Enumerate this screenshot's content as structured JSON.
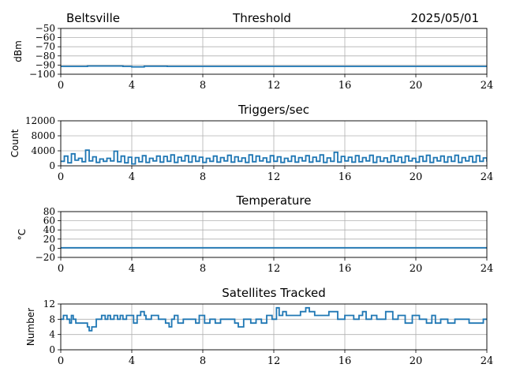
{
  "header": {
    "station": "Beltsville",
    "date": "2025/05/01"
  },
  "chart_data": [
    {
      "type": "line",
      "title": "Threshold",
      "ylabel": "dBm",
      "xlabel": "",
      "xlim": [
        0,
        24
      ],
      "ylim": [
        -100,
        -50
      ],
      "xticks": [
        0,
        4,
        8,
        12,
        16,
        20,
        24
      ],
      "yticks": [
        -100,
        -90,
        -80,
        -70,
        -60,
        -50
      ],
      "grid": true,
      "color": "#1f77b4",
      "series": [
        {
          "x": [
            0,
            1.5,
            3.5,
            4.0,
            4.7,
            6,
            8,
            10,
            12,
            14,
            16,
            18,
            20,
            22,
            24
          ],
          "y": [
            -91.5,
            -91,
            -91.5,
            -92,
            -91.3,
            -91.5,
            -91.5,
            -91.5,
            -91.5,
            -91.5,
            -91.5,
            -91.5,
            -91.5,
            -91.5,
            -91.5
          ]
        }
      ]
    },
    {
      "type": "line",
      "title": "Triggers/sec",
      "ylabel": "Count",
      "xlabel": "",
      "xlim": [
        0,
        24
      ],
      "ylim": [
        0,
        12000
      ],
      "xticks": [
        0,
        4,
        8,
        12,
        16,
        20,
        24
      ],
      "yticks": [
        0,
        4000,
        8000,
        12000
      ],
      "grid": true,
      "color": "#1f77b4",
      "series": [
        {
          "x": [
            0,
            0.2,
            0.4,
            0.6,
            0.8,
            1.0,
            1.2,
            1.4,
            1.6,
            1.8,
            2.0,
            2.2,
            2.4,
            2.6,
            2.8,
            3.0,
            3.2,
            3.4,
            3.6,
            3.8,
            4.0,
            4.2,
            4.4,
            4.6,
            4.8,
            5.0,
            5.2,
            5.4,
            5.6,
            5.8,
            6.0,
            6.2,
            6.4,
            6.6,
            6.8,
            7.0,
            7.2,
            7.4,
            7.6,
            7.8,
            8.0,
            8.2,
            8.4,
            8.6,
            8.8,
            9.0,
            9.2,
            9.4,
            9.6,
            9.8,
            10.0,
            10.2,
            10.4,
            10.6,
            10.8,
            11.0,
            11.2,
            11.4,
            11.6,
            11.8,
            12.0,
            12.2,
            12.4,
            12.6,
            12.8,
            13.0,
            13.2,
            13.4,
            13.6,
            13.8,
            14.0,
            14.2,
            14.4,
            14.6,
            14.8,
            15.0,
            15.2,
            15.4,
            15.6,
            15.8,
            16.0,
            16.2,
            16.4,
            16.6,
            16.8,
            17.0,
            17.2,
            17.4,
            17.6,
            17.8,
            18.0,
            18.2,
            18.4,
            18.6,
            18.8,
            19.0,
            19.2,
            19.4,
            19.6,
            19.8,
            20.0,
            20.2,
            20.4,
            20.6,
            20.8,
            21.0,
            21.2,
            21.4,
            21.6,
            21.8,
            22.0,
            22.2,
            22.4,
            22.6,
            22.8,
            23.0,
            23.2,
            23.4,
            23.6,
            23.8,
            24.0
          ],
          "y": [
            1200,
            2600,
            800,
            3200,
            1500,
            2000,
            1100,
            4200,
            1300,
            2400,
            900,
            1800,
            1200,
            2000,
            1300,
            3900,
            1100,
            2600,
            800,
            2300,
            500,
            2200,
            1100,
            2700,
            900,
            2000,
            1300,
            2600,
            1000,
            2500,
            1200,
            2900,
            900,
            2300,
            1300,
            2700,
            1000,
            2600,
            1200,
            2300,
            900,
            2000,
            1200,
            2600,
            1000,
            2200,
            1300,
            2800,
            1000,
            2400,
            1200,
            2100,
            900,
            2900,
            1100,
            2600,
            1300,
            2100,
            1000,
            2700,
            1200,
            2400,
            900,
            2000,
            1200,
            2600,
            1000,
            2200,
            1300,
            2700,
            1000,
            2300,
            1200,
            2900,
            900,
            2100,
            1200,
            3600,
            1000,
            2500,
            1300,
            2300,
            1000,
            2700,
            1100,
            2200,
            1300,
            2800,
            900,
            2400,
            1200,
            2100,
            1000,
            2700,
            1200,
            2300,
            900,
            2600,
            1300,
            2000,
            1000,
            2500,
            1200,
            2800,
            900,
            2200,
            1300,
            2600,
            1000,
            2400,
            1200,
            2800,
            900,
            2200,
            1300,
            2500,
            1000,
            2700,
            1200,
            2100,
            1100
          ]
        }
      ]
    },
    {
      "type": "line",
      "title": "Temperature",
      "ylabel": "°C",
      "xlabel": "",
      "xlim": [
        0,
        24
      ],
      "ylim": [
        -20,
        80
      ],
      "xticks": [
        0,
        4,
        8,
        12,
        16,
        20,
        24
      ],
      "yticks": [
        -20,
        0,
        20,
        40,
        60,
        80
      ],
      "grid": true,
      "color": "#1f77b4",
      "series": [
        {
          "x": [
            0,
            24
          ],
          "y": [
            1,
            1
          ]
        }
      ]
    },
    {
      "type": "line",
      "title": "Satellites Tracked",
      "ylabel": "Number",
      "xlabel": "",
      "xlim": [
        0,
        24
      ],
      "ylim": [
        0,
        12
      ],
      "xticks": [
        0,
        4,
        8,
        12,
        16,
        20,
        24
      ],
      "yticks": [
        0,
        4,
        8,
        12
      ],
      "grid": true,
      "color": "#1f77b4",
      "series": [
        {
          "x": [
            0,
            0.15,
            0.35,
            0.5,
            0.6,
            0.7,
            0.85,
            1.3,
            1.5,
            1.6,
            1.75,
            2.0,
            2.3,
            2.5,
            2.65,
            2.8,
            3.0,
            3.2,
            3.35,
            3.5,
            3.7,
            4.1,
            4.3,
            4.5,
            4.7,
            4.8,
            5.1,
            5.5,
            5.9,
            6.1,
            6.25,
            6.4,
            6.6,
            6.9,
            7.3,
            7.6,
            7.8,
            8.1,
            8.4,
            8.7,
            9.0,
            9.5,
            9.8,
            10.0,
            10.3,
            10.7,
            11.0,
            11.3,
            11.6,
            11.9,
            12.15,
            12.3,
            12.5,
            12.7,
            13.0,
            13.5,
            13.8,
            14.0,
            14.3,
            14.7,
            15.1,
            15.6,
            16.0,
            16.5,
            16.8,
            17.0,
            17.2,
            17.5,
            17.8,
            18.3,
            18.7,
            19.0,
            19.4,
            19.8,
            20.2,
            20.6,
            20.9,
            21.1,
            21.4,
            21.8,
            22.2,
            22.6,
            23.0,
            23.5,
            23.8,
            24.0
          ],
          "y": [
            8,
            9,
            8,
            7,
            9,
            8,
            7,
            7,
            6,
            5,
            6,
            8,
            9,
            8,
            9,
            8,
            9,
            8,
            9,
            8,
            9,
            7,
            9,
            10,
            9,
            8,
            9,
            8,
            7,
            6,
            8,
            9,
            7,
            8,
            8,
            7,
            9,
            7,
            8,
            7,
            8,
            8,
            7,
            6,
            8,
            7,
            8,
            7,
            9,
            8,
            11,
            9,
            10,
            9,
            9,
            10,
            11,
            10,
            9,
            9,
            10,
            8,
            9,
            8,
            9,
            10,
            8,
            9,
            8,
            10,
            8,
            9,
            7,
            9,
            8,
            7,
            9,
            7,
            8,
            7,
            8,
            8,
            7,
            7,
            8,
            8
          ]
        }
      ]
    }
  ]
}
